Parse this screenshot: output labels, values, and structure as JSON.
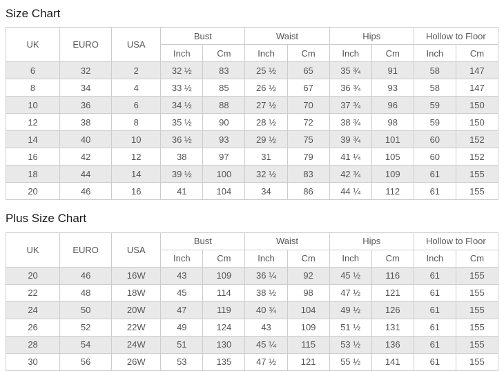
{
  "columns": {
    "uk": "UK",
    "euro": "EURO",
    "usa": "USA",
    "bust": "Bust",
    "waist": "Waist",
    "hips": "Hips",
    "hollow_to_floor": "Hollow to Floor",
    "inch": "Inch",
    "cm": "Cm"
  },
  "size_chart": {
    "title": "Size Chart",
    "rows": [
      [
        "6",
        "32",
        "2",
        "32 ½",
        "83",
        "25 ½",
        "65",
        "35 ¾",
        "91",
        "58",
        "147"
      ],
      [
        "8",
        "34",
        "4",
        "33 ½",
        "85",
        "26 ½",
        "67",
        "36 ¾",
        "93",
        "58",
        "147"
      ],
      [
        "10",
        "36",
        "6",
        "34 ½",
        "88",
        "27 ½",
        "70",
        "37 ¾",
        "96",
        "59",
        "150"
      ],
      [
        "12",
        "38",
        "8",
        "35 ½",
        "90",
        "28 ½",
        "72",
        "38 ¾",
        "98",
        "59",
        "150"
      ],
      [
        "14",
        "40",
        "10",
        "36 ½",
        "93",
        "29 ½",
        "75",
        "39 ¾",
        "101",
        "60",
        "152"
      ],
      [
        "16",
        "42",
        "12",
        "38",
        "97",
        "31",
        "79",
        "41 ¼",
        "105",
        "60",
        "152"
      ],
      [
        "18",
        "44",
        "14",
        "39 ½",
        "100",
        "32 ½",
        "83",
        "42 ¾",
        "109",
        "61",
        "155"
      ],
      [
        "20",
        "46",
        "16",
        "41",
        "104",
        "34",
        "86",
        "44 ¼",
        "112",
        "61",
        "155"
      ]
    ]
  },
  "plus_size_chart": {
    "title": "Plus Size Chart",
    "rows": [
      [
        "20",
        "46",
        "16W",
        "43",
        "109",
        "36 ¼",
        "92",
        "45 ½",
        "116",
        "61",
        "155"
      ],
      [
        "22",
        "48",
        "18W",
        "45",
        "114",
        "38 ½",
        "98",
        "47 ½",
        "121",
        "61",
        "155"
      ],
      [
        "24",
        "50",
        "20W",
        "47",
        "119",
        "40 ¾",
        "104",
        "49 ½",
        "126",
        "61",
        "155"
      ],
      [
        "26",
        "52",
        "22W",
        "49",
        "124",
        "43",
        "109",
        "51 ½",
        "131",
        "61",
        "155"
      ],
      [
        "28",
        "54",
        "24W",
        "51",
        "130",
        "45 ¼",
        "115",
        "53 ½",
        "136",
        "61",
        "155"
      ],
      [
        "30",
        "56",
        "26W",
        "53",
        "135",
        "47 ½",
        "121",
        "55 ½",
        "141",
        "61",
        "155"
      ]
    ]
  },
  "colors": {
    "zebra_row": "#e9e9e9",
    "border": "#cccccc",
    "cell_text": "#555555",
    "title_text": "#1a1a1a"
  }
}
